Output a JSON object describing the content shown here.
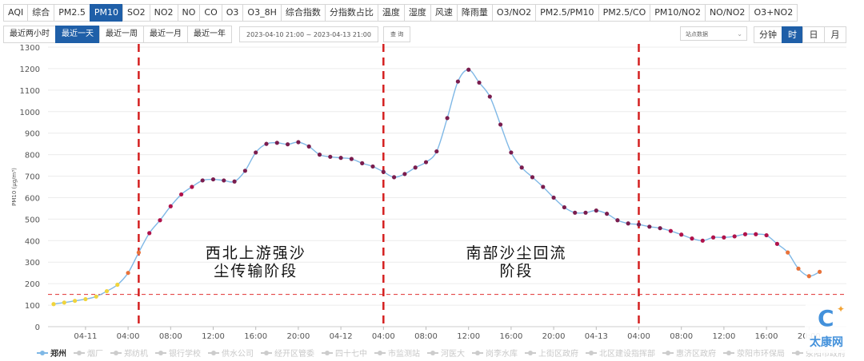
{
  "toolbar": {
    "tabs": [
      "AQI",
      "综合",
      "PM2.5",
      "PM10",
      "SO2",
      "NO2",
      "NO",
      "CO",
      "O3",
      "O3_8H",
      "综合指数",
      "分指数占比",
      "温度",
      "湿度",
      "风速",
      "降雨量",
      "O3/NO2",
      "PM2.5/PM10",
      "PM2.5/CO",
      "PM10/NO2",
      "NO/NO2",
      "O3+NO2"
    ],
    "active_tab": "PM10"
  },
  "filters": {
    "ranges": [
      "最近两小时",
      "最近一天",
      "最近一周",
      "最近一月",
      "最近一年"
    ],
    "active_range": "最近一天",
    "date_range": "2023-04-10 21:00 ~ 2023-04-13 21:00",
    "query_label": "查 询",
    "station_select": "站点数据",
    "granularity": [
      "分钟",
      "时",
      "日",
      "月"
    ],
    "active_granularity": "时"
  },
  "chart_data": {
    "type": "line",
    "ylabel": "PM10 (μg/m³)",
    "ylim": [
      0,
      1300
    ],
    "y_ticks": [
      0,
      100,
      200,
      300,
      400,
      500,
      600,
      700,
      800,
      900,
      1000,
      1100,
      1200,
      1300
    ],
    "x_tick_labels": [
      "04-11",
      "04:00",
      "08:00",
      "12:00",
      "16:00",
      "20:00",
      "04-12",
      "04:00",
      "08:00",
      "12:00",
      "16:00",
      "20:00",
      "04-13",
      "04:00",
      "08:00",
      "12:00",
      "16:00",
      "20:00"
    ],
    "x_start": "2023-04-10 21:00",
    "x_step_hours": 1,
    "grid": true,
    "series": [
      {
        "name": "郑州",
        "color": "#7fb8e6",
        "values": [
          105,
          112,
          120,
          128,
          140,
          165,
          195,
          250,
          345,
          435,
          495,
          560,
          615,
          650,
          680,
          685,
          680,
          675,
          725,
          810,
          850,
          855,
          848,
          858,
          838,
          800,
          790,
          785,
          780,
          760,
          745,
          720,
          695,
          710,
          740,
          765,
          815,
          970,
          1140,
          1195,
          1135,
          1070,
          940,
          810,
          740,
          695,
          650,
          600,
          555,
          530,
          530,
          540,
          525,
          495,
          480,
          475,
          465,
          458,
          445,
          428,
          410,
          400,
          415,
          415,
          420,
          430,
          430,
          425,
          385,
          345,
          270,
          235,
          255
        ],
        "point_colors": [
          "#f0d43c",
          "#f0d43c",
          "#f0d43c",
          "#f0d43c",
          "#f0d43c",
          "#f0d43c",
          "#f0d43c",
          "#e8723a",
          "#e8723a",
          "#b0124a",
          "#b0124a",
          "#b0124a",
          "#b0124a",
          "#b0124a",
          "#7a1d4e",
          "#7a1d4e",
          "#7a1d4e",
          "#7a1d4e",
          "#7a1d4e",
          "#7a1d4e",
          "#7a1d4e",
          "#7a1d4e",
          "#7a1d4e",
          "#7a1d4e",
          "#7a1d4e",
          "#7a1d4e",
          "#7a1d4e",
          "#7a1d4e",
          "#7a1d4e",
          "#7a1d4e",
          "#7a1d4e",
          "#7a1d4e",
          "#7a1d4e",
          "#7a1d4e",
          "#7a1d4e",
          "#7a1d4e",
          "#7a1d4e",
          "#7a1d4e",
          "#7a1d4e",
          "#7a1d4e",
          "#7a1d4e",
          "#7a1d4e",
          "#7a1d4e",
          "#7a1d4e",
          "#7a1d4e",
          "#7a1d4e",
          "#7a1d4e",
          "#7a1d4e",
          "#7a1d4e",
          "#7a1d4e",
          "#7a1d4e",
          "#7a1d4e",
          "#7a1d4e",
          "#7a1d4e",
          "#7a1d4e",
          "#7a1d4e",
          "#7a1d4e",
          "#7a1d4e",
          "#b0124a",
          "#b0124a",
          "#b0124a",
          "#b0124a",
          "#b0124a",
          "#b0124a",
          "#b0124a",
          "#b0124a",
          "#b0124a",
          "#b0124a",
          "#b0124a",
          "#e8723a",
          "#e8723a",
          "#e8723a",
          "#e8723a"
        ]
      }
    ],
    "threshold": {
      "value": 150,
      "color": "#e03030"
    },
    "stage_dividers": {
      "times": [
        "2023-04-11 05:00",
        "2023-04-12 04:00",
        "2023-04-13 04:00"
      ],
      "color": "#d42020"
    },
    "annotations": [
      {
        "lines": [
          "西北上游强沙",
          "尘传输阶段"
        ],
        "x_center": "2023-04-11 16:00",
        "y": [
          320,
          235
        ]
      },
      {
        "lines": [
          "南部沙尘回流",
          "阶段"
        ],
        "x_center": "2023-04-12 16:30",
        "y": [
          320,
          235
        ]
      }
    ]
  },
  "legend": {
    "items": [
      "郑州",
      "烟厂",
      "郑纺机",
      "银行学校",
      "供水公司",
      "经开区管委",
      "四十七中",
      "市监测站",
      "河医大",
      "岗李水库",
      "上街区政府",
      "北区建设指挥部",
      "惠济区政府",
      "荥阳市环保局",
      "荥阳市政府"
    ],
    "active": "郑州"
  },
  "watermark": {
    "text": "太康网",
    "icon": "tc-logo-icon"
  }
}
